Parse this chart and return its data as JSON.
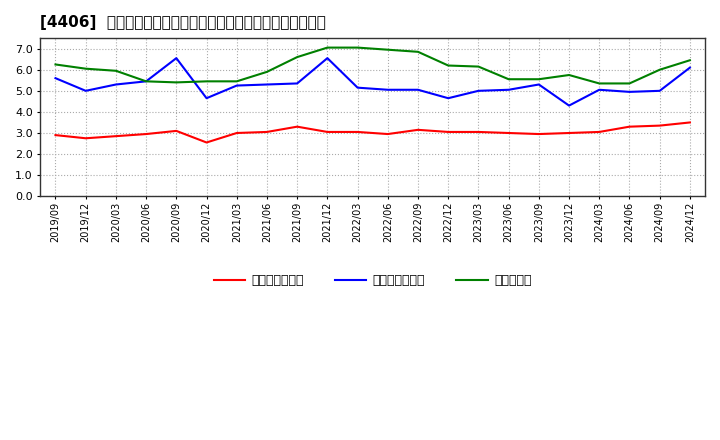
{
  "title": "[4406]  売上債権回転率、買入債務回転率、在庫回転率の推移",
  "x_labels": [
    "2019/09",
    "2019/12",
    "2020/03",
    "2020/06",
    "2020/09",
    "2020/12",
    "2021/03",
    "2021/06",
    "2021/09",
    "2021/12",
    "2022/03",
    "2022/06",
    "2022/09",
    "2022/12",
    "2023/03",
    "2023/06",
    "2023/09",
    "2023/12",
    "2024/03",
    "2024/06",
    "2024/09",
    "2024/12"
  ],
  "売上債権回転率": [
    2.9,
    2.75,
    2.85,
    2.95,
    3.1,
    2.55,
    3.0,
    3.05,
    3.3,
    3.05,
    3.05,
    2.95,
    3.15,
    3.05,
    3.05,
    3.0,
    2.95,
    3.0,
    3.05,
    3.3,
    3.35,
    3.5
  ],
  "買入債務回転率": [
    5.6,
    5.0,
    5.3,
    5.45,
    6.55,
    4.65,
    5.25,
    5.3,
    5.35,
    6.55,
    5.15,
    5.05,
    5.05,
    4.65,
    5.0,
    5.05,
    5.3,
    4.3,
    5.05,
    4.95,
    5.0,
    6.1
  ],
  "在庫回転率": [
    6.25,
    6.05,
    5.95,
    5.45,
    5.4,
    5.45,
    5.45,
    5.9,
    6.6,
    7.05,
    7.05,
    6.95,
    6.85,
    6.2,
    6.15,
    5.55,
    5.55,
    5.75,
    5.35,
    5.35,
    6.0,
    6.45
  ],
  "line_colors": {
    "売上債権回転率": "#ff0000",
    "買入債務回転率": "#0000ff",
    "在庫回転率": "#008000"
  },
  "ylim": [
    0.0,
    7.5
  ],
  "yticks": [
    0.0,
    1.0,
    2.0,
    3.0,
    4.0,
    5.0,
    6.0,
    7.0
  ],
  "background_color": "#ffffff",
  "plot_bg_color": "#ffffff",
  "grid_color": "#aaaaaa",
  "title_fontsize": 11,
  "legend_labels": [
    "売上債権回転率",
    "買入債務回転率",
    "在庫回転率"
  ]
}
